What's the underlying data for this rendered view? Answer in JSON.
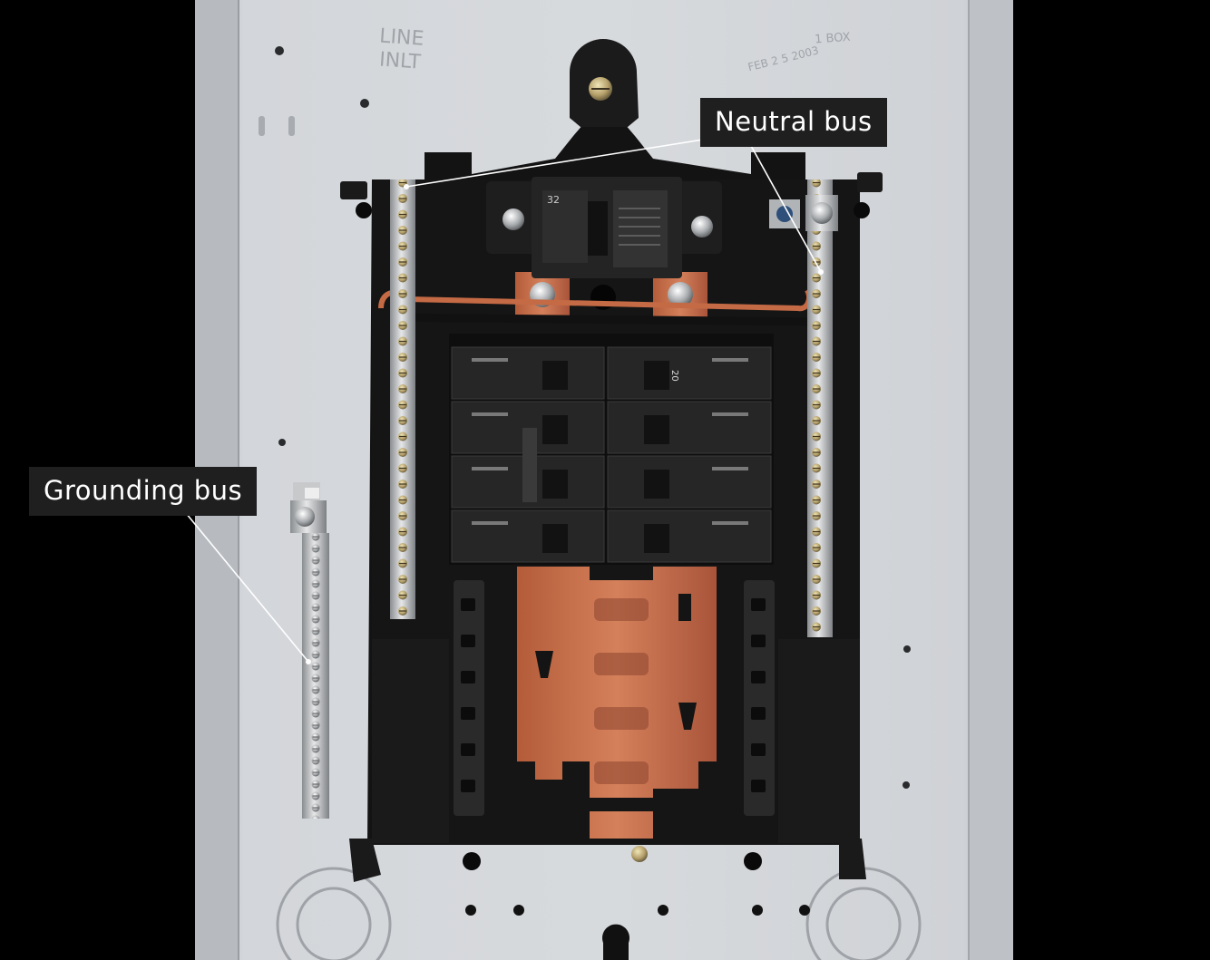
{
  "labels": {
    "neutral_bus": "Neutral bus",
    "grounding_bus": "Grounding bus"
  },
  "embossed": {
    "line_top": "LINE",
    "line_bottom": "INLT",
    "date_stamp": "FEB 2 5 2003",
    "box_stamp": "1 BOX"
  },
  "breaker_ratings": {
    "main": "32",
    "branch": "20"
  },
  "colors": {
    "background": "#000000",
    "enclosure": "#c9ccd0",
    "panel_base": "#151515",
    "copper": "#c46a45",
    "breaker": "#232323",
    "label_bg": "#1f1f1f",
    "label_text": "#ffffff"
  }
}
